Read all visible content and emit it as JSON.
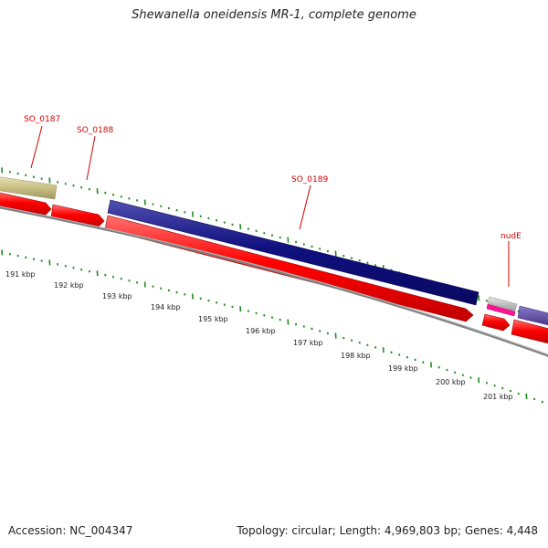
{
  "title": "Shewanella oneidensis MR-1, complete genome",
  "footer": {
    "accession": "Accession: NC_004347",
    "summary": "Topology: circular; Length: 4,969,803 bp; Genes: 4,448"
  },
  "genes": [
    {
      "label": "SO_0187"
    },
    {
      "label": "SO_0188"
    },
    {
      "label": "SO_0189"
    },
    {
      "label": "nudE"
    }
  ],
  "scale_labels": [
    "191 kbp",
    "192 kbp",
    "193 kbp",
    "194 kbp",
    "195 kbp",
    "196 kbp",
    "197 kbp",
    "198 kbp",
    "199 kbp",
    "200 kbp",
    "201 kbp"
  ],
  "colors": {
    "cds_forward": "#ff0000",
    "feature_navy": "#101080",
    "feature_olive": "#c8c084",
    "feature_pink": "#ff1493",
    "feature_gray": "#b4b4b4",
    "feature_purple": "#584898",
    "tick_green": "#1e8c1e",
    "backbone_gray": "#808080",
    "label_red": "#d40000"
  }
}
